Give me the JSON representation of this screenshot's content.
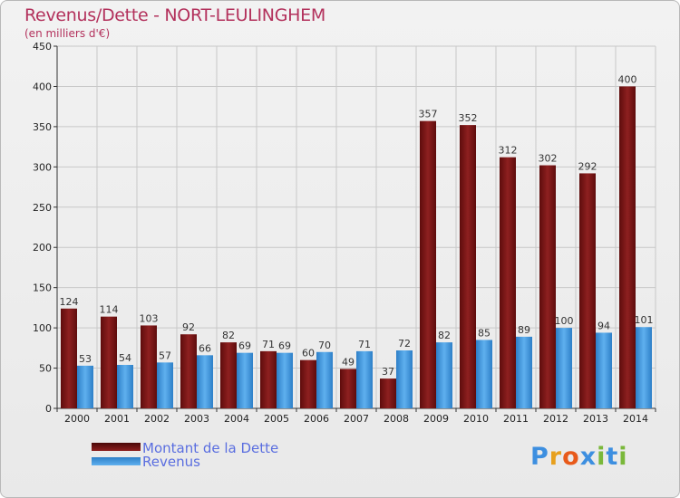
{
  "chart_data": {
    "type": "bar",
    "title": "Revenus/Dette - NORT-LEULINGHEM",
    "subtitle": "(en milliers d'€)",
    "categories": [
      "2000",
      "2001",
      "2002",
      "2003",
      "2004",
      "2005",
      "2006",
      "2007",
      "2008",
      "2009",
      "2010",
      "2011",
      "2012",
      "2013",
      "2014"
    ],
    "series": [
      {
        "name": "Montant de la Dette",
        "color": "#7a1515",
        "values": [
          124,
          114,
          103,
          92,
          82,
          71,
          60,
          49,
          37,
          357,
          352,
          312,
          302,
          292,
          400
        ]
      },
      {
        "name": "Revenus",
        "color": "#3d95dc",
        "values": [
          53,
          54,
          57,
          66,
          69,
          69,
          70,
          71,
          72,
          82,
          85,
          89,
          100,
          94,
          101
        ]
      }
    ],
    "ylim": [
      0,
      450
    ],
    "yticks": [
      0,
      50,
      100,
      150,
      200,
      250,
      300,
      350,
      400,
      450
    ],
    "grid": true,
    "legend": "bottom-left"
  },
  "logo": {
    "letters": [
      "P",
      "r",
      "o",
      "x",
      "i",
      "t",
      "i"
    ],
    "colors": [
      "#3d8fe0",
      "#e7a01e",
      "#e85a1a",
      "#3d8fe0",
      "#7ab83a",
      "#3d8fe0",
      "#7ab83a"
    ]
  }
}
